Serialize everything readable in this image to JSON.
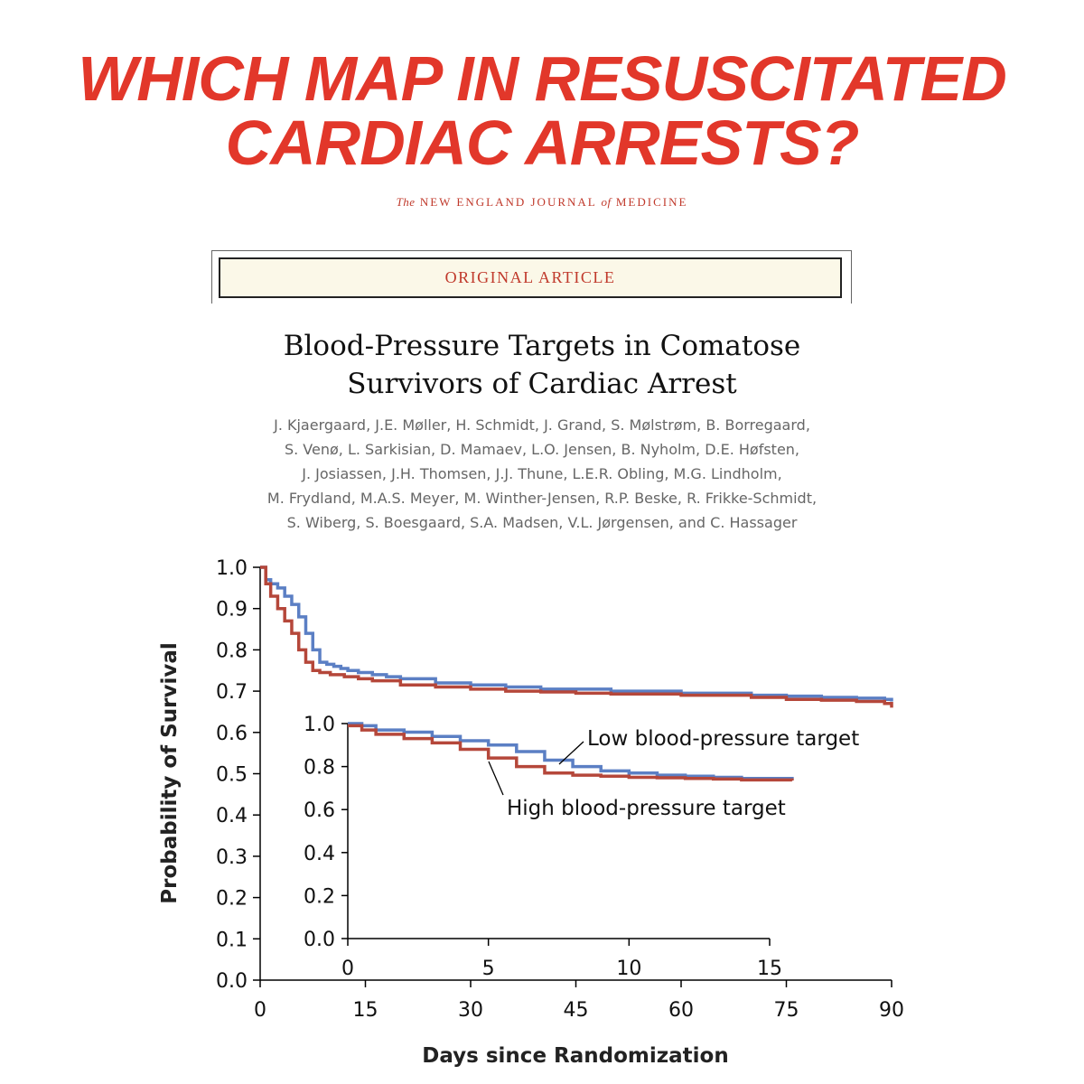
{
  "headline": {
    "line1": "WHICH MAP IN RESUSCITATED",
    "line2": "CARDIAC ARRESTS?"
  },
  "journal": {
    "the": "The",
    "name1": "NEW ENGLAND JOURNAL",
    "of": "of",
    "name2": "MEDICINE"
  },
  "article_type": "ORIGINAL ARTICLE",
  "article_title": {
    "line1": "Blood-Pressure Targets in Comatose",
    "line2": "Survivors of Cardiac Arrest"
  },
  "authors": [
    "J. Kjaergaard, J.E. Møller, H. Schmidt, J. Grand, S. Mølstrøm, B. Borregaard,",
    "S. Venø, L. Sarkisian, D. Mamaev, L.O. Jensen, B. Nyholm, D.E. Høfsten,",
    "J. Josiassen, J.H. Thomsen, J.J. Thune, L.E.R. Obling, M.G. Lindholm,",
    "M. Frydland, M.A.S. Meyer, M. Winther-Jensen, R.P. Beske, R. Frikke-Schmidt,",
    "S. Wiberg, S. Boesgaard, S.A. Madsen, V.L. Jørgensen, and C. Hassager"
  ],
  "chart_data": [
    {
      "type": "line",
      "title": "",
      "xlabel": "Days since Randomization",
      "ylabel": "Probability of Survival",
      "xlim": [
        0,
        90
      ],
      "ylim": [
        0,
        1.0
      ],
      "xticks": [
        "0",
        "15",
        "30",
        "45",
        "60",
        "75",
        "90"
      ],
      "yticks": [
        "0.0",
        "0.1",
        "0.2",
        "0.3",
        "0.4",
        "0.5",
        "0.6",
        "0.7",
        "0.8",
        "0.9",
        "1.0"
      ],
      "step": true,
      "grid": false,
      "series": [
        {
          "name": "Low blood-pressure target",
          "color": "#5b7fc4",
          "x": [
            0,
            0.8,
            1.5,
            2.5,
            3.5,
            4.5,
            5.5,
            6.5,
            7.5,
            8.5,
            9.5,
            10.5,
            11.5,
            12.5,
            14,
            16,
            18,
            20,
            25,
            30,
            35,
            40,
            50,
            60,
            70,
            75,
            80,
            85,
            89,
            90
          ],
          "y": [
            1.0,
            0.97,
            0.96,
            0.95,
            0.93,
            0.91,
            0.88,
            0.84,
            0.8,
            0.77,
            0.765,
            0.76,
            0.755,
            0.75,
            0.745,
            0.74,
            0.735,
            0.73,
            0.72,
            0.715,
            0.71,
            0.705,
            0.7,
            0.695,
            0.69,
            0.688,
            0.685,
            0.683,
            0.68,
            0.675
          ]
        },
        {
          "name": "High blood-pressure target",
          "color": "#b5473a",
          "x": [
            0,
            0.8,
            1.5,
            2.5,
            3.5,
            4.5,
            5.5,
            6.5,
            7.5,
            8.5,
            10,
            12,
            14,
            16,
            20,
            25,
            30,
            35,
            40,
            45,
            50,
            60,
            70,
            75,
            80,
            85,
            89,
            90
          ],
          "y": [
            1.0,
            0.96,
            0.93,
            0.9,
            0.87,
            0.84,
            0.8,
            0.77,
            0.75,
            0.745,
            0.74,
            0.735,
            0.73,
            0.725,
            0.715,
            0.71,
            0.705,
            0.7,
            0.698,
            0.695,
            0.693,
            0.69,
            0.685,
            0.68,
            0.678,
            0.675,
            0.67,
            0.66
          ]
        }
      ]
    },
    {
      "type": "line",
      "title": "",
      "xlabel": "",
      "ylabel": "",
      "xlim": [
        0,
        15
      ],
      "ylim": [
        0,
        1.0
      ],
      "xticks": [
        "0",
        "5",
        "10",
        "15"
      ],
      "yticks": [
        "0.0",
        "0.2",
        "0.4",
        "0.6",
        "0.8",
        "1.0"
      ],
      "step": true,
      "grid": false,
      "series": [
        {
          "name": "Low blood-pressure target",
          "color": "#5b7fc4",
          "label": "Low blood-pressure target",
          "x": [
            0,
            0.5,
            1,
            2,
            3,
            4,
            5,
            6,
            7,
            8,
            9,
            10,
            11,
            12,
            13,
            14,
            15.8
          ],
          "y": [
            1.0,
            0.99,
            0.97,
            0.96,
            0.94,
            0.92,
            0.9,
            0.87,
            0.83,
            0.8,
            0.78,
            0.77,
            0.76,
            0.755,
            0.75,
            0.745,
            0.74
          ]
        },
        {
          "name": "High blood-pressure target",
          "color": "#b5473a",
          "label": "High blood-pressure target",
          "x": [
            0,
            0.5,
            1,
            2,
            3,
            4,
            5,
            6,
            7,
            8,
            9,
            10,
            11,
            12,
            13,
            14,
            15.8
          ],
          "y": [
            0.99,
            0.97,
            0.95,
            0.93,
            0.91,
            0.88,
            0.84,
            0.8,
            0.77,
            0.76,
            0.755,
            0.75,
            0.748,
            0.745,
            0.742,
            0.738,
            0.735
          ]
        }
      ]
    }
  ]
}
